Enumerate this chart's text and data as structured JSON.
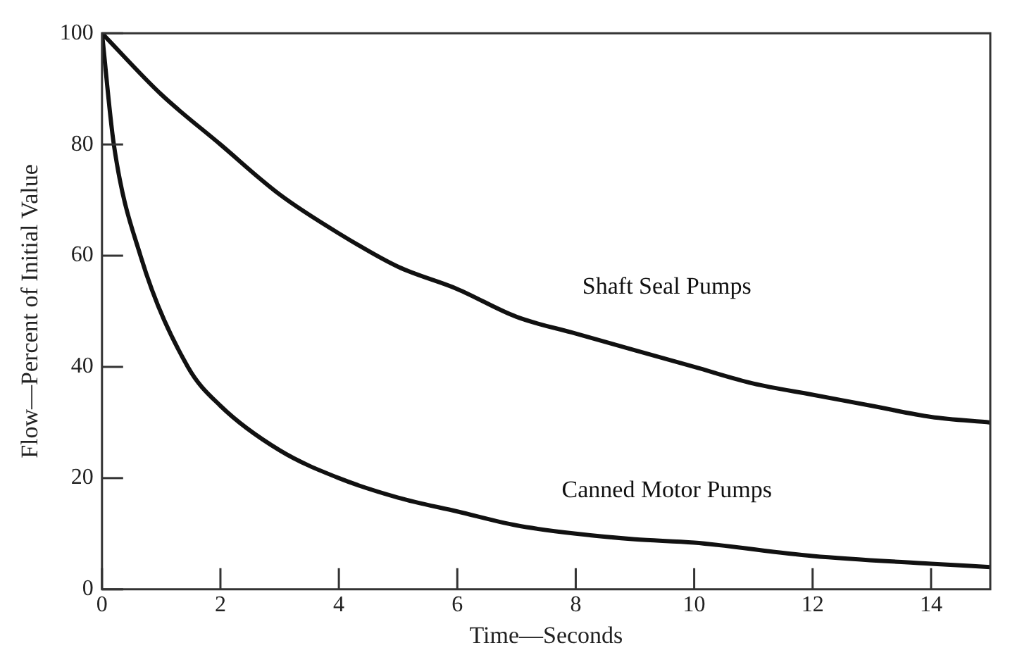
{
  "chart_data": {
    "type": "line",
    "xlabel": "Time—Seconds",
    "ylabel": "Flow—Percent of Initial Value",
    "xlim": [
      0,
      15
    ],
    "ylim": [
      0,
      100
    ],
    "xticks": [
      0,
      2,
      4,
      6,
      8,
      10,
      12,
      14
    ],
    "yticks": [
      0,
      20,
      40,
      60,
      80,
      100
    ],
    "grid": false,
    "legend": false,
    "marker": "none",
    "line_style": "solid",
    "series": [
      {
        "name": "Shaft Seal Pumps",
        "color": "#111111",
        "x": [
          0,
          1,
          2,
          3,
          4,
          5,
          6,
          7,
          8,
          9,
          10,
          11,
          12,
          13,
          14,
          15
        ],
        "values": [
          100,
          89,
          80,
          71,
          64,
          58,
          54,
          49,
          46,
          43,
          40,
          37,
          35,
          33,
          31,
          30
        ]
      },
      {
        "name": "Canned Motor Pumps",
        "color": "#111111",
        "x": [
          0,
          0.2,
          0.65,
          1.45,
          2,
          3,
          4,
          5,
          6,
          7,
          8,
          9,
          10,
          12,
          14,
          15
        ],
        "values": [
          100,
          80,
          60,
          40,
          33,
          25,
          20,
          16.5,
          14,
          11.5,
          10,
          9,
          8.4,
          6,
          4.6,
          4
        ]
      }
    ]
  }
}
